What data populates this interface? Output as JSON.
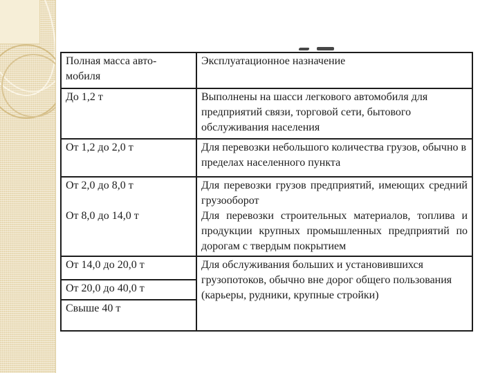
{
  "table": {
    "header": {
      "mass": "Полная масса авто-\nмобиля",
      "purpose": "Эксплуатационное назначение"
    },
    "rows": [
      {
        "mass": "До 1,2 т",
        "purpose": "Выполнены на шасси легкового автомобиля для предприятий связи, торговой сети, бытового обслуживания населения"
      },
      {
        "mass": "От 1,2 до 2,0 т",
        "purpose": "Для перевозки небольшого количества грузов, обычно в пределах населенного пункта"
      },
      {
        "mass": "От 2,0 до 8,0 т",
        "purpose": "Для перевозки грузов предприятий, имеющих средний грузооборот"
      },
      {
        "mass": "От 8,0 до 14,0 т",
        "purpose": "Для перевозки строительных материалов, топлива и продукции крупных промышленных предприятий по дорогам с твердым покрытием"
      },
      {
        "mass": "От 14,0 до 20,0 т",
        "purpose": "Для обслуживания больших и установившихся грузопотоков, обычно вне дорог общего пользования (карьеры, рудники, крупные стройки)"
      },
      {
        "mass": "От 20,0 до 40,0 т"
      },
      {
        "mass": "Свыше 40 т"
      }
    ]
  },
  "colors": {
    "background": "#ffffff",
    "strip": "#ecdfbd",
    "strip_pale_square": "#f6eed7",
    "decor_ring_outline": "#d4bd86",
    "table_border": "#1c1c1c",
    "text": "#1c1c1c"
  }
}
